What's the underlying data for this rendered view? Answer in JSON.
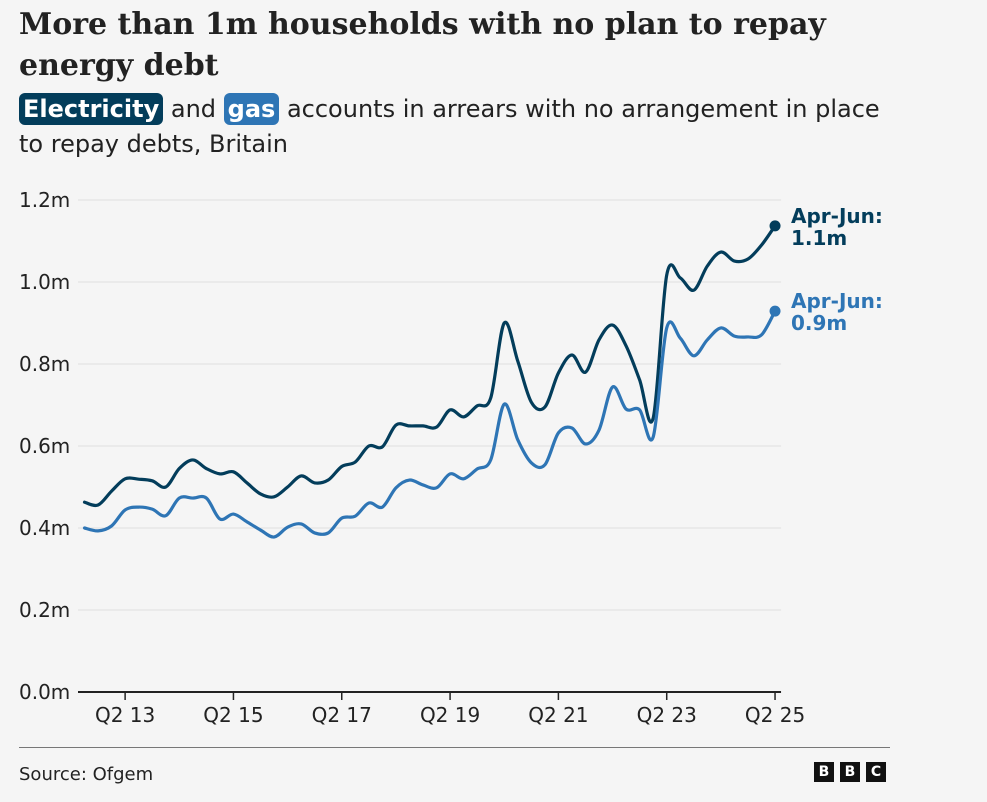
{
  "header": {
    "title": "More than 1m households with no plan to repay energy debt",
    "subtitle_chip_electricity": "Electricity",
    "subtitle_and": " and ",
    "subtitle_chip_gas": "gas",
    "subtitle_rest": " accounts in arrears with no arrangement in place to repay debts, Britain"
  },
  "footer": {
    "source": "Source: Ofgem",
    "logo_letters": [
      "B",
      "B",
      "C"
    ]
  },
  "colors": {
    "electricity": "#033d5b",
    "gas": "#2e75b5",
    "grid": "#e6e6e6",
    "axis": "#222222"
  },
  "chart_data": {
    "type": "line",
    "title": "More than 1m households with no plan to repay energy debt",
    "xlabel": "",
    "ylabel": "",
    "ylim": [
      0,
      1.2
    ],
    "yticks": [
      0,
      0.2,
      0.4,
      0.6,
      0.8,
      1.0,
      1.2
    ],
    "ytick_labels": [
      "0.0m",
      "0.2m",
      "0.4m",
      "0.6m",
      "0.8m",
      "1.0m",
      "1.2m"
    ],
    "grid": true,
    "x_start": "Q3 2012",
    "x_end": "Q2 2025",
    "x_step": "quarter",
    "xticks": [
      {
        "index": 3,
        "label": "Q2 13"
      },
      {
        "index": 11,
        "label": "Q2 15"
      },
      {
        "index": 19,
        "label": "Q2 17"
      },
      {
        "index": 27,
        "label": "Q2 19"
      },
      {
        "index": 35,
        "label": "Q2 21"
      },
      {
        "index": 43,
        "label": "Q2 23"
      },
      {
        "index": 51,
        "label": "Q2 25"
      }
    ],
    "series": [
      {
        "name": "Electricity",
        "color": "#033d5b",
        "end_label_line1": "Apr-Jun:",
        "end_label_line2": "1.1m",
        "values": [
          0.463,
          0.456,
          0.49,
          0.52,
          0.519,
          0.515,
          0.5,
          0.545,
          0.566,
          0.545,
          0.532,
          0.537,
          0.51,
          0.483,
          0.476,
          0.5,
          0.527,
          0.51,
          0.517,
          0.55,
          0.561,
          0.6,
          0.598,
          0.651,
          0.649,
          0.649,
          0.646,
          0.688,
          0.671,
          0.698,
          0.717,
          0.9,
          0.807,
          0.707,
          0.695,
          0.778,
          0.822,
          0.78,
          0.859,
          0.895,
          0.844,
          0.761,
          0.668,
          1.017,
          1.01,
          0.98,
          1.039,
          1.073,
          1.051,
          1.056,
          1.09,
          1.137
        ]
      },
      {
        "name": "Gas",
        "color": "#2e75b5",
        "end_label_line1": "Apr-Jun:",
        "end_label_line2": "0.9m",
        "values": [
          0.4,
          0.393,
          0.405,
          0.444,
          0.451,
          0.446,
          0.43,
          0.473,
          0.473,
          0.473,
          0.422,
          0.434,
          0.415,
          0.395,
          0.378,
          0.402,
          0.41,
          0.388,
          0.388,
          0.424,
          0.429,
          0.461,
          0.451,
          0.498,
          0.517,
          0.505,
          0.498,
          0.532,
          0.52,
          0.544,
          0.566,
          0.702,
          0.615,
          0.559,
          0.554,
          0.632,
          0.644,
          0.605,
          0.639,
          0.744,
          0.69,
          0.688,
          0.622,
          0.888,
          0.863,
          0.82,
          0.859,
          0.888,
          0.868,
          0.866,
          0.871,
          0.929
        ]
      }
    ]
  }
}
